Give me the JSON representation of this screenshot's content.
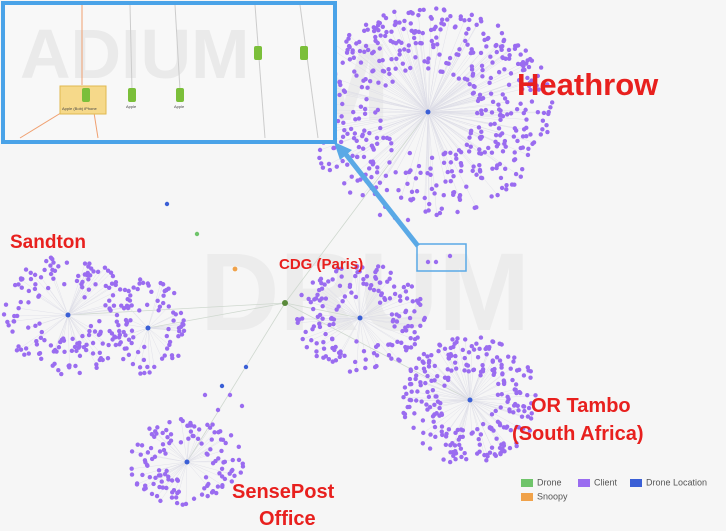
{
  "annotations": {
    "heathrow": "Heathrow",
    "cdg": "CDG (Paris)",
    "sandton": "Sandton",
    "or_tambo": [
      "OR Tambo",
      "(South Africa)"
    ],
    "sensepost": [
      "SensePost",
      "Office"
    ]
  },
  "inset": {
    "labels": [
      "Apple (Bob) iPhone",
      "Apple",
      "Apple"
    ]
  },
  "legend": [
    {
      "name": "Drone",
      "color": "#6fc46a"
    },
    {
      "name": "Client",
      "color": "#9a6cf0"
    },
    {
      "name": "Drone Location",
      "color": "#3a5fd6"
    },
    {
      "name": "Snoopy",
      "color": "#f0a24a"
    }
  ]
}
